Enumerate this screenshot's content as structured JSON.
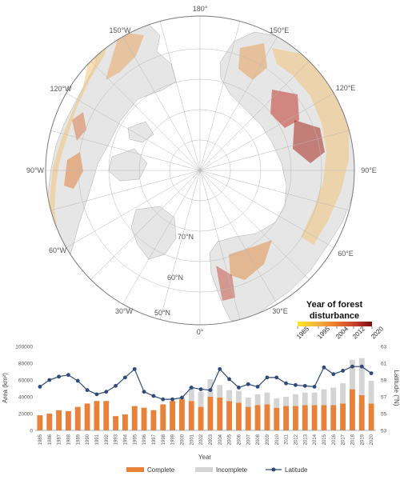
{
  "map": {
    "lon_labels": [
      "180°",
      "150°E",
      "120°E",
      "90°E",
      "60°E",
      "30°E",
      "0°",
      "30°W",
      "60°W",
      "90°W",
      "120°W",
      "150°W"
    ],
    "lat_labels": [
      "70°N",
      "60°N",
      "50°N"
    ],
    "legend": {
      "title_line1": "Year of forest",
      "title_line2": "disturbance",
      "ticks": [
        "1985",
        "1995",
        "2004",
        "2012",
        "2020"
      ],
      "colors": [
        "#fde725",
        "#f5b041",
        "#e8722a",
        "#c0392b",
        "#7b0d0d"
      ]
    },
    "colors": {
      "ocean": "#ffffff",
      "land": "#e6e6e6",
      "grid": "#b8b8b8"
    }
  },
  "chart_data": {
    "type": "bar",
    "categories": [
      "1985",
      "1986",
      "1987",
      "1988",
      "1989",
      "1990",
      "1991",
      "1992",
      "1993",
      "1994",
      "1995",
      "1996",
      "1997",
      "1998",
      "1999",
      "2000",
      "2001",
      "2002",
      "2003",
      "2004",
      "2005",
      "2006",
      "2007",
      "2008",
      "2009",
      "2010",
      "2011",
      "2012",
      "2013",
      "2014",
      "2015",
      "2016",
      "2017",
      "2018",
      "2019",
      "2020"
    ],
    "series": [
      {
        "name": "Complete",
        "kind": "bar",
        "stack": "area",
        "color": "#e8823a",
        "values": [
          18000,
          20000,
          24000,
          23000,
          28000,
          32000,
          35000,
          35000,
          17000,
          19000,
          29000,
          27000,
          24000,
          31000,
          35000,
          37000,
          35000,
          28000,
          40000,
          39000,
          35000,
          33000,
          28000,
          30000,
          31000,
          27000,
          29000,
          29000,
          30000,
          30000,
          30000,
          30000,
          32000,
          49000,
          42000,
          32000
        ]
      },
      {
        "name": "Incomplete",
        "kind": "bar",
        "stack": "area",
        "color": "#d4d4d4",
        "values": [
          0,
          0,
          0,
          0,
          0,
          0,
          0,
          0,
          0,
          0,
          0,
          0,
          0,
          0,
          0,
          2000,
          17000,
          18000,
          21000,
          15000,
          13000,
          14000,
          11000,
          13000,
          14000,
          11000,
          11000,
          14000,
          15000,
          15000,
          19000,
          21000,
          24000,
          35000,
          44000,
          27000
        ]
      },
      {
        "name": "Latitude",
        "kind": "line",
        "axis": "right",
        "color": "#2e4a7a",
        "values": [
          58.2,
          59.0,
          59.4,
          59.6,
          58.9,
          57.8,
          57.3,
          57.6,
          58.3,
          59.3,
          60.3,
          57.6,
          57.1,
          56.7,
          56.7,
          56.9,
          58.1,
          57.9,
          57.8,
          60.3,
          59.1,
          58.1,
          58.5,
          58.2,
          59.3,
          59.3,
          58.6,
          58.4,
          58.3,
          58.2,
          60.5,
          59.7,
          60.1,
          60.6,
          60.6,
          59.8
        ]
      }
    ],
    "xlabel": "Year",
    "ylabel_left": "Area (km²)",
    "ylabel_right": "Latitude (°N)",
    "ylim_left": [
      0,
      100000
    ],
    "yticks_left": [
      "0",
      "20000",
      "40000",
      "60000",
      "80000",
      "100000"
    ],
    "ylim_right": [
      53,
      63
    ],
    "yticks_right": [
      "53",
      "55",
      "57",
      "59",
      "61",
      "63"
    ],
    "legend_position": "bottom-center",
    "grid": false
  }
}
